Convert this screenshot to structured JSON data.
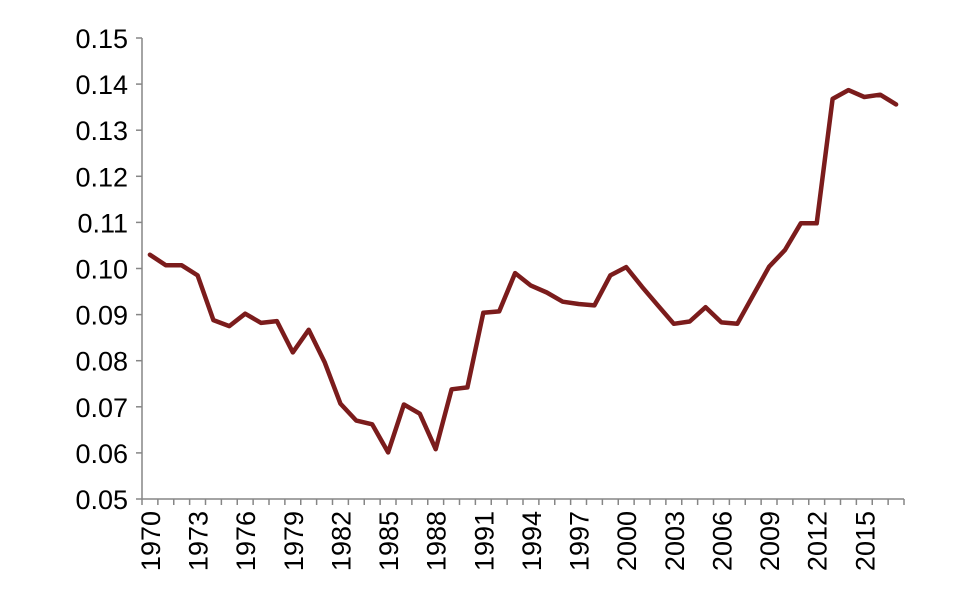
{
  "chart_data": {
    "type": "line",
    "title": "",
    "xlabel": "",
    "ylabel": "",
    "x": [
      1970,
      1971,
      1972,
      1973,
      1974,
      1975,
      1976,
      1977,
      1978,
      1979,
      1980,
      1981,
      1982,
      1983,
      1984,
      1985,
      1986,
      1987,
      1988,
      1989,
      1990,
      1991,
      1992,
      1993,
      1994,
      1995,
      1996,
      1997,
      1998,
      1999,
      2000,
      2001,
      2002,
      2003,
      2004,
      2005,
      2006,
      2007,
      2008,
      2009,
      2010,
      2011,
      2012,
      2013,
      2014,
      2015,
      2016,
      2017
    ],
    "series": [
      {
        "values": [
          0.103,
          0.1007,
          0.1007,
          0.0985,
          0.0888,
          0.0875,
          0.0902,
          0.0882,
          0.0886,
          0.0818,
          0.0867,
          0.0797,
          0.0707,
          0.067,
          0.0662,
          0.0601,
          0.0705,
          0.0685,
          0.0608,
          0.0738,
          0.0742,
          0.0904,
          0.0907,
          0.099,
          0.0963,
          0.0948,
          0.0928,
          0.0923,
          0.092,
          0.0985,
          0.1003,
          0.096,
          0.092,
          0.088,
          0.0885,
          0.0916,
          0.0883,
          0.088,
          0.0942,
          0.1004,
          0.104,
          0.1098,
          0.1098,
          0.1368,
          0.1387,
          0.1372,
          0.1377,
          0.1356
        ]
      }
    ],
    "color": "#7b1c1c",
    "yticks": [
      "0.05",
      "0.06",
      "0.07",
      "0.08",
      "0.09",
      "0.10",
      "0.11",
      "0.12",
      "0.13",
      "0.14",
      "0.15"
    ],
    "ylim": [
      0.05,
      0.15
    ],
    "xticks": [
      "1970",
      "1973",
      "1976",
      "1979",
      "1982",
      "1985",
      "1988",
      "1991",
      "1994",
      "1997",
      "2000",
      "2003",
      "2006",
      "2009",
      "2012",
      "2015"
    ],
    "xlim": [
      1970,
      2017
    ],
    "grid": false,
    "legend": "none"
  }
}
